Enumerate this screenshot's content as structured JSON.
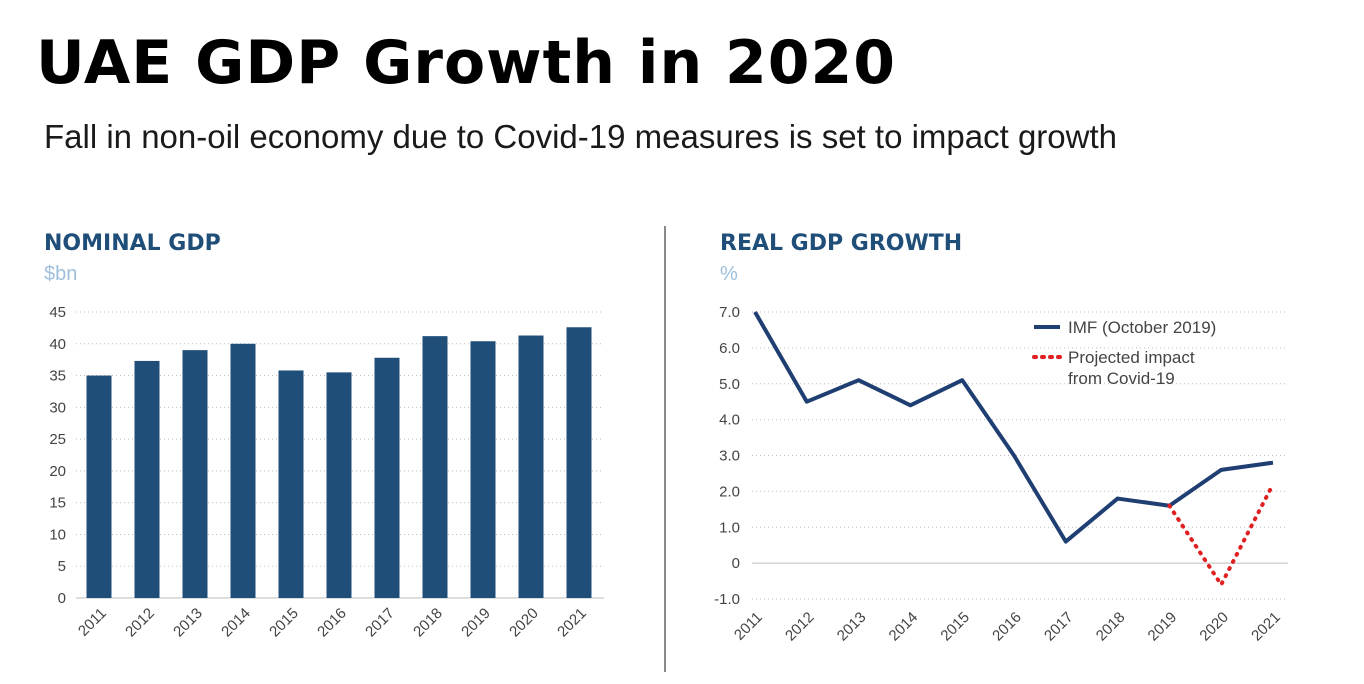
{
  "title": "UAE GDP Growth in 2020",
  "subtitle": "Fall in non-oil economy due to Covid-19 measures is set to impact growth",
  "colors": {
    "bar": "#1f4e79",
    "imf_line": "#1f3f73",
    "projection": "#e02020",
    "grid": "#bdbdbd"
  },
  "chart_data": [
    {
      "type": "bar",
      "title": "NOMINAL GDP",
      "ylabel": "$bn",
      "categories": [
        "2011",
        "2012",
        "2013",
        "2014",
        "2015",
        "2016",
        "2017",
        "2018",
        "2019",
        "2020",
        "2021"
      ],
      "values": [
        35,
        37.3,
        39,
        40,
        35.8,
        35.5,
        37.8,
        41.2,
        40.4,
        41.3,
        42.6
      ],
      "yticks": [
        "0",
        "5",
        "10",
        "15",
        "20",
        "25",
        "30",
        "35",
        "40",
        "45"
      ],
      "ylim": [
        0,
        45
      ],
      "grid": true
    },
    {
      "type": "line",
      "title": "REAL GDP GROWTH",
      "ylabel": "%",
      "categories": [
        "2011",
        "2012",
        "2013",
        "2014",
        "2015",
        "2016",
        "2017",
        "2018",
        "2019",
        "2020",
        "2021"
      ],
      "yticks": [
        "-1.0",
        "0",
        "1.0",
        "2.0",
        "3.0",
        "4.0",
        "5.0",
        "6.0",
        "7.0"
      ],
      "ylim": [
        -1.0,
        7.0
      ],
      "grid": true,
      "legend_position": "top-right",
      "series": [
        {
          "name": "IMF (October 2019)",
          "x": [
            "2011",
            "2012",
            "2013",
            "2014",
            "2015",
            "2016",
            "2017",
            "2018",
            "2019",
            "2020",
            "2021"
          ],
          "values": [
            7.0,
            4.5,
            5.1,
            4.4,
            5.1,
            3.0,
            0.6,
            1.8,
            1.6,
            2.6,
            2.8
          ]
        },
        {
          "name": "Projected impact from Covid-19",
          "x": [
            "2019",
            "2020",
            "2021"
          ],
          "values": [
            1.6,
            -0.6,
            2.2
          ]
        }
      ]
    }
  ]
}
